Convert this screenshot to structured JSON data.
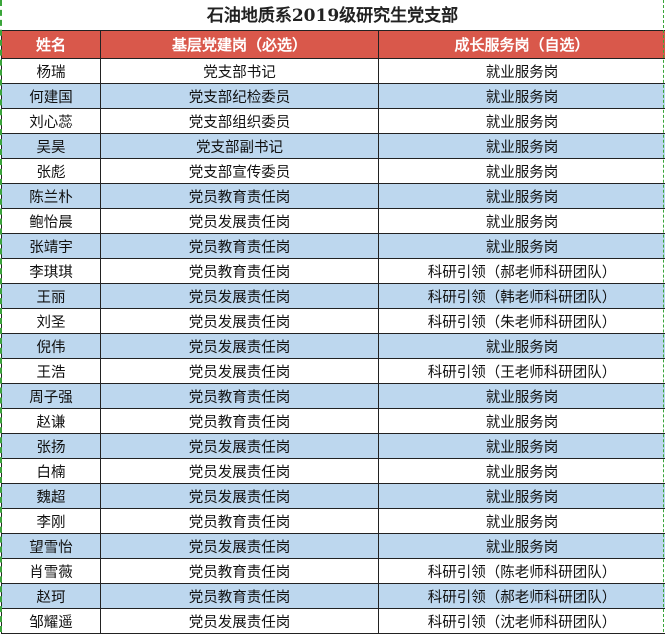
{
  "title": "石油地质系2019级研究生党支部",
  "colors": {
    "header_bg": "#d9584b",
    "stripe": "#bdd7ee"
  },
  "headers": [
    "姓名",
    "基层党建岗（必选）",
    "成长服务岗（自选）"
  ],
  "rows": [
    [
      "杨瑞",
      "党支部书记",
      "就业服务岗"
    ],
    [
      "何建国",
      "党支部纪检委员",
      "就业服务岗"
    ],
    [
      "刘心蕊",
      "党支部组织委员",
      "就业服务岗"
    ],
    [
      "吴昊",
      "党支部副书记",
      "就业服务岗"
    ],
    [
      "张彪",
      "党支部宣传委员",
      "就业服务岗"
    ],
    [
      "陈兰朴",
      "党员教育责任岗",
      "就业服务岗"
    ],
    [
      "鲍怡晨",
      "党员发展责任岗",
      "就业服务岗"
    ],
    [
      "张靖宇",
      "党员教育责任岗",
      "就业服务岗"
    ],
    [
      "李琪琪",
      "党员教育责任岗",
      "科研引领（郝老师科研团队）"
    ],
    [
      "王丽",
      "党员发展责任岗",
      "科研引领（韩老师科研团队）"
    ],
    [
      "刘圣",
      "党员发展责任岗",
      "科研引领（朱老师科研团队）"
    ],
    [
      "倪伟",
      "党员发展责任岗",
      "就业服务岗"
    ],
    [
      "王浩",
      "党员发展责任岗",
      "科研引领（王老师科研团队）"
    ],
    [
      "周子强",
      "党员教育责任岗",
      "就业服务岗"
    ],
    [
      "赵谦",
      "党员教育责任岗",
      "就业服务岗"
    ],
    [
      "张扬",
      "党员发展责任岗",
      "就业服务岗"
    ],
    [
      "白楠",
      "党员发展责任岗",
      "就业服务岗"
    ],
    [
      "魏超",
      "党员发展责任岗",
      "就业服务岗"
    ],
    [
      "李刚",
      "党员教育责任岗",
      "就业服务岗"
    ],
    [
      "望雪怡",
      "党员发展责任岗",
      "就业服务岗"
    ],
    [
      "肖雪薇",
      "党员教育责任岗",
      "科研引领（陈老师科研团队）"
    ],
    [
      "赵珂",
      "党员教育责任岗",
      "科研引领（郝老师科研团队）"
    ],
    [
      "邹耀遥",
      "党员发展责任岗",
      "科研引领（沈老师科研团队）"
    ]
  ]
}
